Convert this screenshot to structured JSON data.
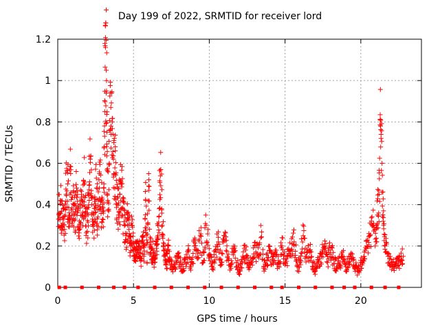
{
  "chart_data": {
    "type": "scatter",
    "title": "Day 199 of 2022, SRMTID for receiver lord",
    "xlabel": "GPS time / hours",
    "ylabel": "SRMTID / TECUs",
    "xlim": [
      0,
      24
    ],
    "ylim": [
      0,
      1.2
    ],
    "xticks": [
      0,
      5,
      10,
      15,
      20
    ],
    "yticks": [
      0,
      0.2,
      0.4,
      0.6,
      0.8,
      1,
      1.2
    ],
    "ytick_labels": [
      "0",
      "0.2",
      "0.4",
      "0.6",
      "0.8",
      "1",
      "1.2"
    ],
    "grid": true,
    "marker": "+",
    "color": "#ff0000",
    "series": [
      {
        "name": "SRMTID",
        "note": "dense scatter of SRMTID samples approx. every 3 minutes; representative points",
        "x": [
          0.05,
          0.15,
          0.25,
          0.35,
          0.45,
          0.55,
          0.65,
          0.75,
          0.85,
          0.95,
          1.05,
          1.15,
          1.25,
          1.35,
          1.45,
          1.55,
          1.65,
          1.75,
          1.85,
          1.95,
          2.05,
          2.15,
          2.25,
          2.35,
          2.45,
          2.55,
          2.65,
          2.75,
          2.85,
          2.95,
          3.05,
          3.1,
          3.15,
          3.2,
          3.25,
          3.3,
          3.4,
          3.5,
          3.6,
          3.7,
          3.8,
          3.9,
          4.0,
          4.1,
          4.2,
          4.3,
          4.4,
          4.5,
          4.6,
          4.7,
          4.8,
          4.9,
          5.0,
          5.1,
          5.2,
          5.3,
          5.4,
          5.5,
          5.6,
          5.7,
          5.8,
          5.9,
          6.0,
          6.1,
          6.2,
          6.3,
          6.4,
          6.5,
          6.6,
          6.7,
          6.8,
          6.9,
          7.0,
          7.1,
          7.2,
          7.3,
          7.4,
          7.6,
          7.8,
          8.0,
          8.2,
          8.4,
          8.6,
          8.8,
          9.0,
          9.2,
          9.4,
          9.6,
          9.8,
          10.0,
          10.2,
          10.4,
          10.6,
          10.8,
          11.0,
          11.2,
          11.4,
          11.6,
          11.8,
          12.0,
          12.2,
          12.4,
          12.6,
          12.8,
          13.0,
          13.2,
          13.4,
          13.6,
          13.8,
          14.0,
          14.2,
          14.4,
          14.6,
          14.8,
          15.0,
          15.2,
          15.4,
          15.6,
          15.8,
          16.0,
          16.2,
          16.4,
          16.6,
          16.8,
          17.0,
          17.2,
          17.4,
          17.6,
          17.8,
          18.0,
          18.2,
          18.4,
          18.6,
          18.8,
          19.0,
          19.2,
          19.4,
          19.6,
          19.8,
          20.0,
          20.2,
          20.4,
          20.6,
          20.8,
          21.0,
          21.1,
          21.2,
          21.3,
          21.4,
          21.5,
          21.6,
          21.8,
          22.0,
          22.2,
          22.4,
          22.6,
          22.8
        ],
        "y": [
          0.33,
          0.42,
          0.3,
          0.38,
          0.28,
          0.45,
          0.5,
          0.36,
          0.55,
          0.3,
          0.4,
          0.33,
          0.48,
          0.37,
          0.29,
          0.42,
          0.35,
          0.5,
          0.38,
          0.27,
          0.45,
          0.62,
          0.4,
          0.3,
          0.36,
          0.48,
          0.34,
          0.55,
          0.42,
          0.33,
          0.5,
          0.85,
          1.16,
          1.05,
          0.75,
          0.42,
          0.6,
          0.87,
          0.8,
          0.55,
          0.66,
          0.4,
          0.35,
          0.45,
          0.5,
          0.38,
          0.3,
          0.25,
          0.33,
          0.28,
          0.2,
          0.3,
          0.18,
          0.15,
          0.22,
          0.17,
          0.2,
          0.14,
          0.25,
          0.16,
          0.42,
          0.12,
          0.55,
          0.2,
          0.15,
          0.18,
          0.12,
          0.22,
          0.25,
          0.38,
          0.57,
          0.3,
          0.18,
          0.15,
          0.12,
          0.2,
          0.14,
          0.1,
          0.12,
          0.15,
          0.08,
          0.12,
          0.18,
          0.1,
          0.2,
          0.14,
          0.25,
          0.12,
          0.3,
          0.15,
          0.1,
          0.18,
          0.22,
          0.12,
          0.25,
          0.15,
          0.1,
          0.2,
          0.12,
          0.08,
          0.15,
          0.18,
          0.1,
          0.12,
          0.2,
          0.15,
          0.24,
          0.1,
          0.13,
          0.18,
          0.12,
          0.15,
          0.1,
          0.2,
          0.12,
          0.15,
          0.18,
          0.22,
          0.1,
          0.12,
          0.25,
          0.15,
          0.18,
          0.12,
          0.08,
          0.12,
          0.15,
          0.2,
          0.12,
          0.18,
          0.14,
          0.1,
          0.12,
          0.15,
          0.1,
          0.12,
          0.14,
          0.1,
          0.08,
          0.12,
          0.15,
          0.2,
          0.25,
          0.3,
          0.22,
          0.35,
          0.45,
          0.78,
          0.6,
          0.3,
          0.2,
          0.15,
          0.12,
          0.1,
          0.14,
          0.12,
          0.15
        ],
        "zero_points_x": [
          0.1,
          0.5,
          1.6,
          2.7,
          3.7,
          4.4,
          5.3,
          6.4,
          7.5,
          8.6,
          9.7,
          10.8,
          11.9,
          13.0,
          14.1,
          14.8,
          15.9,
          17.0,
          18.1,
          18.9,
          19.6,
          20.7,
          21.6,
          22.5
        ]
      }
    ]
  }
}
